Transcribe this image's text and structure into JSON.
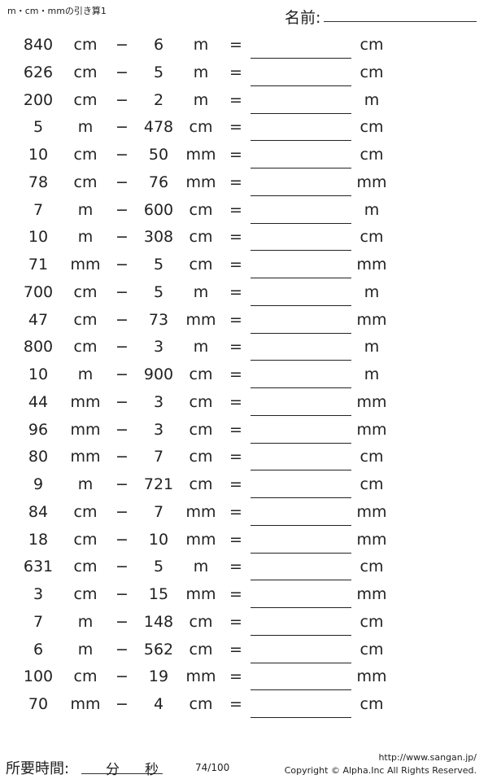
{
  "header": {
    "title": "m・cm・mmの引き算1",
    "name_label": "名前:"
  },
  "problems": [
    [
      "840",
      "cm",
      "−",
      "6",
      "m",
      "=",
      "cm"
    ],
    [
      "626",
      "cm",
      "−",
      "5",
      "m",
      "=",
      "cm"
    ],
    [
      "200",
      "cm",
      "−",
      "2",
      "m",
      "=",
      "m"
    ],
    [
      "5",
      "m",
      "−",
      "478",
      "cm",
      "=",
      "cm"
    ],
    [
      "10",
      "cm",
      "−",
      "50",
      "mm",
      "=",
      "cm"
    ],
    [
      "78",
      "cm",
      "−",
      "76",
      "mm",
      "=",
      "mm"
    ],
    [
      "7",
      "m",
      "−",
      "600",
      "cm",
      "=",
      "m"
    ],
    [
      "10",
      "m",
      "−",
      "308",
      "cm",
      "=",
      "cm"
    ],
    [
      "71",
      "mm",
      "−",
      "5",
      "cm",
      "=",
      "mm"
    ],
    [
      "700",
      "cm",
      "−",
      "5",
      "m",
      "=",
      "m"
    ],
    [
      "47",
      "cm",
      "−",
      "73",
      "mm",
      "=",
      "mm"
    ],
    [
      "800",
      "cm",
      "−",
      "3",
      "m",
      "=",
      "m"
    ],
    [
      "10",
      "m",
      "−",
      "900",
      "cm",
      "=",
      "m"
    ],
    [
      "44",
      "mm",
      "−",
      "3",
      "cm",
      "=",
      "mm"
    ],
    [
      "96",
      "mm",
      "−",
      "3",
      "cm",
      "=",
      "mm"
    ],
    [
      "80",
      "mm",
      "−",
      "7",
      "cm",
      "=",
      "cm"
    ],
    [
      "9",
      "m",
      "−",
      "721",
      "cm",
      "=",
      "cm"
    ],
    [
      "84",
      "cm",
      "−",
      "7",
      "mm",
      "=",
      "mm"
    ],
    [
      "18",
      "cm",
      "−",
      "10",
      "mm",
      "=",
      "mm"
    ],
    [
      "631",
      "cm",
      "−",
      "5",
      "m",
      "=",
      "cm"
    ],
    [
      "3",
      "cm",
      "−",
      "15",
      "mm",
      "=",
      "mm"
    ],
    [
      "7",
      "m",
      "−",
      "148",
      "cm",
      "=",
      "cm"
    ],
    [
      "6",
      "m",
      "−",
      "562",
      "cm",
      "=",
      "cm"
    ],
    [
      "100",
      "cm",
      "−",
      "19",
      "mm",
      "=",
      "mm"
    ],
    [
      "70",
      "mm",
      "−",
      "4",
      "cm",
      "=",
      "cm"
    ]
  ],
  "footer": {
    "time_label": "所要時間:",
    "minutes": "分",
    "seconds": "秒",
    "page": "74/100",
    "url": "http://www.sangan.jp/",
    "copyright": "Copyright © Alpha.Inc All Rights Reserved."
  }
}
